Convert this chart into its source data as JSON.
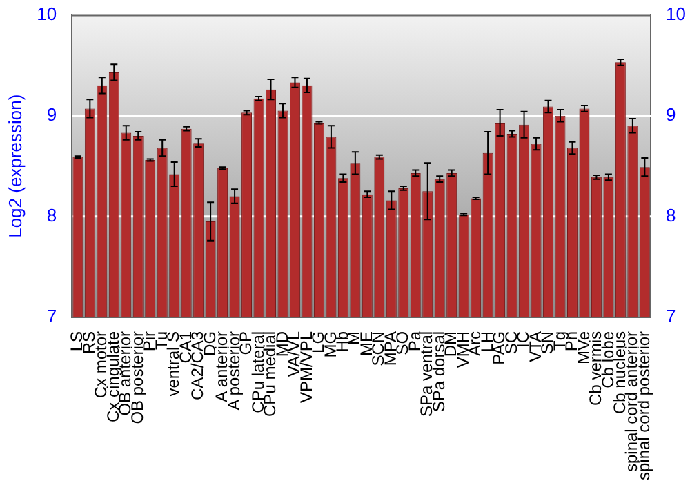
{
  "chart_data": {
    "type": "bar",
    "ylabel": "Log2 (expression)",
    "categories": [
      "LS",
      "RS",
      "Cx motor",
      "Cx cingulate",
      "OB anterior",
      "OB posterior",
      "Pir",
      "Tu",
      "ventral S",
      "CA1",
      "CA2/CA3",
      "DG",
      "A anterior",
      "A posterior",
      "GP",
      "CPu lateral",
      "CPu medial",
      "MD",
      "VA/VL",
      "VPM/VPL",
      "LG",
      "MG",
      "Hb",
      "M",
      "ME",
      "SCN",
      "MPA",
      "SO",
      "Pa",
      "SPa ventral",
      "SPa dorsal",
      "DM",
      "VMH",
      "Arc",
      "LH",
      "PAG",
      "SC",
      "IC",
      "VTA",
      "SN",
      "Tg",
      "Pn",
      "MVe",
      "Cb vermis",
      "Cb lobe",
      "Cb nucleus",
      "spinal cord anterior",
      "spinal cord posterior"
    ],
    "values": [
      8.59,
      9.07,
      9.3,
      9.43,
      8.83,
      8.8,
      8.56,
      8.68,
      8.42,
      8.87,
      8.73,
      7.95,
      8.48,
      8.2,
      9.03,
      9.17,
      9.26,
      9.05,
      9.33,
      9.3,
      8.93,
      8.79,
      8.38,
      8.53,
      8.22,
      8.59,
      8.16,
      8.28,
      8.43,
      8.25,
      8.37,
      8.43,
      8.02,
      8.18,
      8.63,
      8.93,
      8.82,
      8.91,
      8.72,
      9.09,
      9.0,
      8.68,
      9.07,
      8.39,
      8.39,
      9.53,
      8.9,
      8.49
    ],
    "errors": [
      0.01,
      0.09,
      0.08,
      0.08,
      0.07,
      0.04,
      0.01,
      0.08,
      0.12,
      0.02,
      0.04,
      0.19,
      0.01,
      0.07,
      0.02,
      0.02,
      0.1,
      0.07,
      0.05,
      0.07,
      0.01,
      0.11,
      0.04,
      0.11,
      0.03,
      0.02,
      0.09,
      0.02,
      0.03,
      0.28,
      0.03,
      0.03,
      0.01,
      0.01,
      0.21,
      0.13,
      0.03,
      0.13,
      0.06,
      0.06,
      0.06,
      0.06,
      0.03,
      0.02,
      0.03,
      0.03,
      0.07,
      0.09
    ],
    "color": "#b22c2c",
    "ylim": [
      7,
      10
    ],
    "yticks": [
      7,
      8,
      9,
      10
    ],
    "y2lim": [
      7,
      10
    ],
    "y2ticks": [
      7,
      8,
      9,
      10
    ],
    "grid": "y",
    "legend": false
  }
}
